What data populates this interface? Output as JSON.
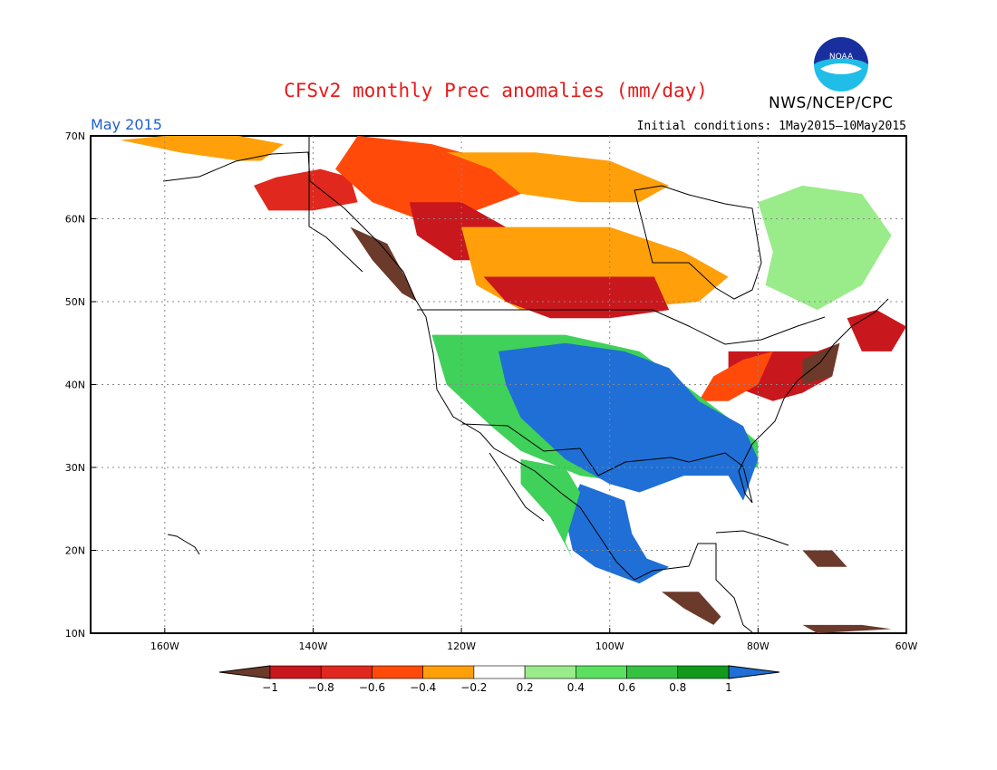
{
  "header": {
    "title": "CFSv2 monthly Prec anomalies (mm/day)",
    "agency": "NWS/NCEP/CPC",
    "month": "May 2015",
    "initial_conditions": "Initial conditions: 1May2015—10May2015",
    "logo_text": "NOAA"
  },
  "map": {
    "lon_range": [
      -170,
      -60
    ],
    "lat_range": [
      10,
      70
    ],
    "lat_ticks": [
      "10N",
      "20N",
      "30N",
      "40N",
      "50N",
      "60N",
      "70N"
    ],
    "lon_ticks": [
      "160W",
      "140W",
      "120W",
      "100W",
      "80W",
      "60W"
    ],
    "anomaly_regions": [
      {
        "name": "alaska-north",
        "color": "#ffa00a",
        "points": [
          [
            -166,
            69.5
          ],
          [
            -158,
            68
          ],
          [
            -150,
            67
          ],
          [
            -147,
            67
          ],
          [
            -144,
            69
          ],
          [
            -150,
            70
          ],
          [
            -160,
            70
          ]
        ]
      },
      {
        "name": "alaska-south",
        "color": "#e0281e",
        "points": [
          [
            -148,
            64
          ],
          [
            -145,
            65
          ],
          [
            -139,
            66
          ],
          [
            -135,
            65
          ],
          [
            -134,
            62
          ],
          [
            -140,
            61
          ],
          [
            -146,
            61
          ]
        ]
      },
      {
        "name": "yukon-mackenzie",
        "color": "#ff4a0a",
        "points": [
          [
            -134,
            70
          ],
          [
            -124,
            69
          ],
          [
            -116,
            67
          ],
          [
            -110,
            66
          ],
          [
            -112,
            63
          ],
          [
            -118,
            61
          ],
          [
            -126,
            60
          ],
          [
            -132,
            62
          ],
          [
            -137,
            66
          ]
        ]
      },
      {
        "name": "arctic-canada",
        "color": "#ffa00a",
        "points": [
          [
            -122,
            68
          ],
          [
            -110,
            68
          ],
          [
            -100,
            67
          ],
          [
            -92,
            64
          ],
          [
            -96,
            62
          ],
          [
            -104,
            62
          ],
          [
            -112,
            63
          ],
          [
            -116,
            66
          ]
        ]
      },
      {
        "name": "bc-alberta",
        "color": "#c8171d",
        "points": [
          [
            -127,
            62
          ],
          [
            -120,
            62
          ],
          [
            -114,
            59
          ],
          [
            -116,
            55
          ],
          [
            -121,
            55
          ],
          [
            -126,
            58
          ]
        ]
      },
      {
        "name": "prairies",
        "color": "#ffa00a",
        "points": [
          [
            -120,
            59
          ],
          [
            -100,
            59
          ],
          [
            -90,
            56
          ],
          [
            -84,
            53
          ],
          [
            -88,
            50
          ],
          [
            -100,
            49
          ],
          [
            -112,
            49
          ],
          [
            -118,
            52
          ]
        ]
      },
      {
        "name": "saskatchewan",
        "color": "#c8171d",
        "points": [
          [
            -117,
            53
          ],
          [
            -104,
            53
          ],
          [
            -94,
            53
          ],
          [
            -92,
            49
          ],
          [
            -100,
            48
          ],
          [
            -108,
            48
          ],
          [
            -114,
            50
          ]
        ]
      },
      {
        "name": "bc-coast",
        "color": "#6b3a2a",
        "points": [
          [
            -135,
            59
          ],
          [
            -130,
            57
          ],
          [
            -127,
            52
          ],
          [
            -126,
            50
          ],
          [
            -128,
            51
          ],
          [
            -132,
            55
          ]
        ]
      },
      {
        "name": "ne-us",
        "color": "#c8171d",
        "points": [
          [
            -84,
            44
          ],
          [
            -72,
            44
          ],
          [
            -69,
            45
          ],
          [
            -70,
            41
          ],
          [
            -74,
            39
          ],
          [
            -78,
            38
          ],
          [
            -84,
            40
          ]
        ]
      },
      {
        "name": "ne-us-red",
        "color": "#ff4a0a",
        "points": [
          [
            -86,
            41
          ],
          [
            -82,
            43
          ],
          [
            -78,
            44
          ],
          [
            -80,
            40
          ],
          [
            -84,
            38
          ],
          [
            -88,
            38
          ]
        ]
      },
      {
        "name": "new-england",
        "color": "#6b3a2a",
        "points": [
          [
            -74,
            43
          ],
          [
            -69,
            45
          ],
          [
            -70,
            41
          ],
          [
            -74,
            40
          ]
        ]
      },
      {
        "name": "maritimes",
        "color": "#c8171d",
        "points": [
          [
            -68,
            48
          ],
          [
            -64,
            49
          ],
          [
            -60,
            47
          ],
          [
            -62,
            44
          ],
          [
            -66,
            44
          ]
        ]
      },
      {
        "name": "west-us",
        "color": "#3fd15a",
        "points": [
          [
            -124,
            46
          ],
          [
            -118,
            46
          ],
          [
            -106,
            46
          ],
          [
            -96,
            44
          ],
          [
            -90,
            40
          ],
          [
            -84,
            36
          ],
          [
            -80,
            33
          ],
          [
            -80,
            30
          ],
          [
            -86,
            30
          ],
          [
            -96,
            28
          ],
          [
            -104,
            29
          ],
          [
            -112,
            32
          ],
          [
            -116,
            35
          ],
          [
            -122,
            40
          ]
        ]
      },
      {
        "name": "central-us",
        "color": "#1f6fd6",
        "points": [
          [
            -115,
            44
          ],
          [
            -106,
            45
          ],
          [
            -98,
            44
          ],
          [
            -92,
            42
          ],
          [
            -88,
            38
          ],
          [
            -82,
            35
          ],
          [
            -80,
            31
          ],
          [
            -82,
            26
          ],
          [
            -84,
            29
          ],
          [
            -90,
            29
          ],
          [
            -96,
            27
          ],
          [
            -100,
            28
          ],
          [
            -106,
            31
          ],
          [
            -112,
            36
          ],
          [
            -114,
            40
          ]
        ]
      },
      {
        "name": "mexico",
        "color": "#1f6fd6",
        "points": [
          [
            -104,
            28
          ],
          [
            -98,
            26
          ],
          [
            -97,
            22
          ],
          [
            -95,
            19
          ],
          [
            -92,
            18
          ],
          [
            -96,
            16
          ],
          [
            -102,
            18
          ],
          [
            -105,
            20
          ],
          [
            -106,
            24
          ]
        ]
      },
      {
        "name": "mexico-green",
        "color": "#3fd15a",
        "points": [
          [
            -112,
            31
          ],
          [
            -106,
            30
          ],
          [
            -104,
            27
          ],
          [
            -106,
            21
          ],
          [
            -105,
            19
          ],
          [
            -108,
            24
          ],
          [
            -112,
            28
          ]
        ]
      },
      {
        "name": "east-canada",
        "color": "#9aeb8a",
        "points": [
          [
            -80,
            62
          ],
          [
            -74,
            64
          ],
          [
            -66,
            63
          ],
          [
            -62,
            58
          ],
          [
            -66,
            52
          ],
          [
            -72,
            49
          ],
          [
            -79,
            52
          ],
          [
            -78,
            56
          ]
        ]
      },
      {
        "name": "central-america",
        "color": "#6b3a2a",
        "points": [
          [
            -93,
            15
          ],
          [
            -88,
            15
          ],
          [
            -85,
            12
          ],
          [
            -86,
            11
          ],
          [
            -90,
            13
          ]
        ]
      },
      {
        "name": "caribbean",
        "color": "#6b3a2a",
        "points": [
          [
            -74,
            20
          ],
          [
            -70,
            20
          ],
          [
            -68,
            18
          ],
          [
            -72,
            18
          ]
        ]
      },
      {
        "name": "venezuela",
        "color": "#6b3a2a",
        "points": [
          [
            -74,
            11
          ],
          [
            -66,
            11
          ],
          [
            -62,
            10.5
          ],
          [
            -72,
            10
          ]
        ]
      }
    ]
  },
  "colorbar": {
    "labels": [
      "−1",
      "−0.8",
      "−0.6",
      "−0.4",
      "−0.2",
      "0.2",
      "0.4",
      "0.6",
      "0.8",
      "1"
    ],
    "colors": [
      "#6b3a2a",
      "#c8171d",
      "#e0281e",
      "#ff4a0a",
      "#ffa00a",
      "#ffffff",
      "#9aeb8a",
      "#5ae05e",
      "#35c240",
      "#119a1c",
      "#1f6fd6"
    ]
  }
}
